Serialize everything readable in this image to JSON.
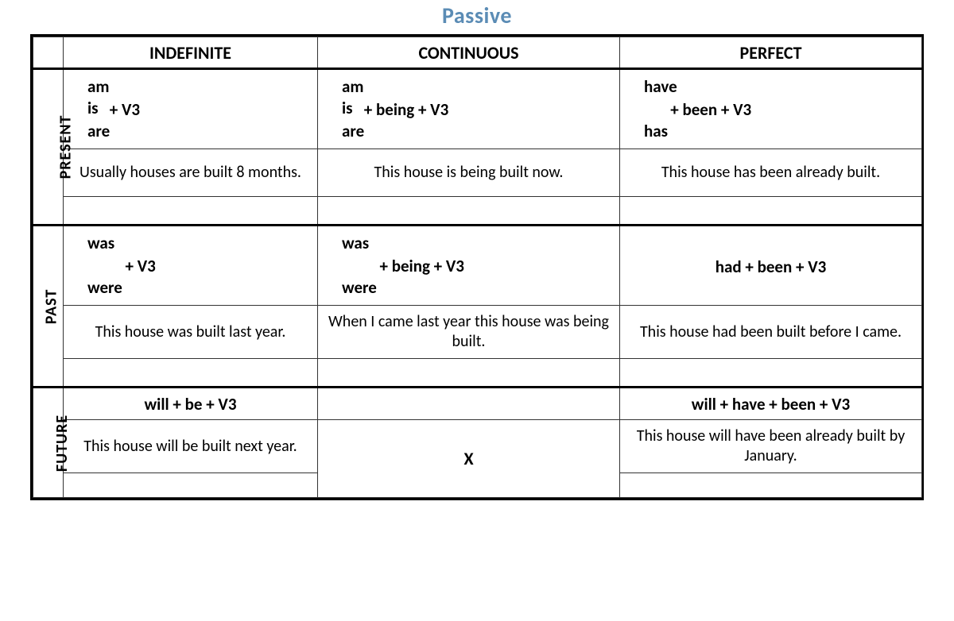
{
  "title": "Passive",
  "title_color": "#5b8cb5",
  "columns": [
    "INDEFINITE",
    "CONTINUOUS",
    "PERFECT"
  ],
  "rows": {
    "present": {
      "label": "PRESENT",
      "indefinite": {
        "aux": [
          "am",
          "is",
          "are"
        ],
        "rest": "+ V3",
        "example": "Usually houses are built 8 months."
      },
      "continuous": {
        "aux": [
          "am",
          "is",
          "are"
        ],
        "rest": "+ being + V3",
        "example": "This house is being built now."
      },
      "perfect": {
        "aux": [
          "have",
          "",
          "has"
        ],
        "rest": "+ been + V3",
        "example": "This house has been already built."
      }
    },
    "past": {
      "label": "PAST",
      "indefinite": {
        "aux": [
          "was",
          "",
          "were"
        ],
        "rest": "+ V3",
        "example": "This house was built last year."
      },
      "continuous": {
        "aux": [
          "was",
          "",
          "were"
        ],
        "rest": "+ being + V3",
        "example": "When I came last year this house was being built."
      },
      "perfect": {
        "single": "had  + been + V3",
        "example": "This house had been built before I came."
      }
    },
    "future": {
      "label": "FUTURE",
      "indefinite": {
        "single": "will + be + V3",
        "example": "This house will be built next year."
      },
      "continuous": {
        "single": "",
        "example": "X"
      },
      "perfect": {
        "single": "will + have + been + V3",
        "example": "This house will have been already built by January."
      }
    }
  },
  "border_color": "#000000",
  "background_color": "#ffffff",
  "header_fontsize": 22,
  "body_fontsize": 20,
  "title_fontsize": 28
}
